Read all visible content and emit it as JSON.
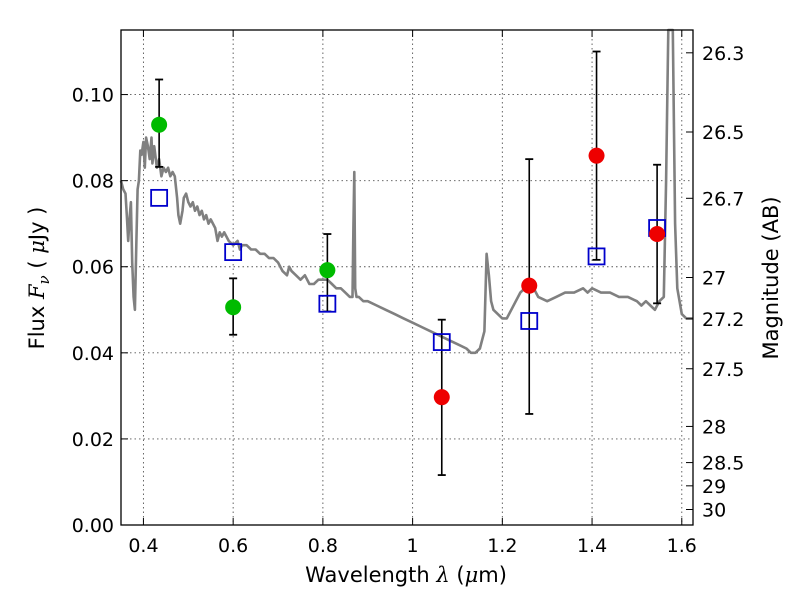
{
  "chart_data": {
    "type": "scatter",
    "xlabel": {
      "prefix": "Wavelength",
      "symbol": "λ",
      "unit_open": "(",
      "unit_mu": "μ",
      "unit_rest": "m)"
    },
    "ylabel": {
      "prefix": "Flux",
      "symbol": "F",
      "subscript": "ν",
      "unit_open": "(",
      "unit_mu": "μ",
      "unit_rest": "Jy",
      "unit_close": ")"
    },
    "y2label": "Magnitude (AB)",
    "xlim": [
      0.35,
      1.625
    ],
    "ylim": [
      0.0,
      0.115
    ],
    "grid": true,
    "x_ticks": [
      0.4,
      0.6,
      0.8,
      1.0,
      1.2,
      1.4,
      1.6
    ],
    "x_tick_labels": [
      "0.4",
      "0.6",
      "0.8",
      "1",
      "1.2",
      "1.4",
      "1.6"
    ],
    "y_ticks": [
      0.0,
      0.02,
      0.04,
      0.06,
      0.08,
      0.1
    ],
    "y_tick_labels": [
      "0.00",
      "0.02",
      "0.04",
      "0.06",
      "0.08",
      "0.10"
    ],
    "mag_ticks": [
      {
        "label": "26.3",
        "y": 0.1097
      },
      {
        "label": "26.5",
        "y": 0.0913
      },
      {
        "label": "26.7",
        "y": 0.0759
      },
      {
        "label": "27",
        "y": 0.0575
      },
      {
        "label": "27.2",
        "y": 0.0479
      },
      {
        "label": "27.5",
        "y": 0.0363
      },
      {
        "label": "28",
        "y": 0.0229
      },
      {
        "label": "28.5",
        "y": 0.0145
      },
      {
        "label": "29",
        "y": 0.0091
      },
      {
        "label": "30",
        "y": 0.0036
      }
    ],
    "series": [
      {
        "marker": "line",
        "color": "#808080",
        "points": [
          [
            0.35,
            0.08
          ],
          [
            0.355,
            0.078
          ],
          [
            0.36,
            0.077
          ],
          [
            0.363,
            0.072
          ],
          [
            0.366,
            0.066
          ],
          [
            0.369,
            0.071
          ],
          [
            0.372,
            0.075
          ],
          [
            0.375,
            0.061
          ],
          [
            0.378,
            0.053
          ],
          [
            0.381,
            0.05
          ],
          [
            0.384,
            0.065
          ],
          [
            0.387,
            0.078
          ],
          [
            0.39,
            0.08
          ],
          [
            0.393,
            0.087
          ],
          [
            0.396,
            0.086
          ],
          [
            0.4,
            0.089
          ],
          [
            0.403,
            0.083
          ],
          [
            0.406,
            0.09
          ],
          [
            0.41,
            0.088
          ],
          [
            0.414,
            0.085
          ],
          [
            0.418,
            0.09
          ],
          [
            0.42,
            0.084
          ],
          [
            0.424,
            0.088
          ],
          [
            0.43,
            0.083
          ],
          [
            0.435,
            0.085
          ],
          [
            0.44,
            0.081
          ],
          [
            0.445,
            0.083
          ],
          [
            0.45,
            0.082
          ],
          [
            0.455,
            0.083
          ],
          [
            0.46,
            0.081
          ],
          [
            0.465,
            0.082
          ],
          [
            0.47,
            0.081
          ],
          [
            0.475,
            0.076
          ],
          [
            0.478,
            0.072
          ],
          [
            0.482,
            0.07
          ],
          [
            0.487,
            0.073
          ],
          [
            0.49,
            0.076
          ],
          [
            0.495,
            0.077
          ],
          [
            0.5,
            0.075
          ],
          [
            0.505,
            0.074
          ],
          [
            0.51,
            0.075
          ],
          [
            0.515,
            0.073
          ],
          [
            0.52,
            0.074
          ],
          [
            0.525,
            0.072
          ],
          [
            0.53,
            0.073
          ],
          [
            0.535,
            0.071
          ],
          [
            0.54,
            0.072
          ],
          [
            0.545,
            0.07
          ],
          [
            0.55,
            0.071
          ],
          [
            0.56,
            0.069
          ],
          [
            0.565,
            0.066
          ],
          [
            0.57,
            0.068
          ],
          [
            0.575,
            0.067
          ],
          [
            0.58,
            0.068
          ],
          [
            0.59,
            0.066
          ],
          [
            0.6,
            0.065
          ],
          [
            0.61,
            0.066
          ],
          [
            0.615,
            0.064
          ],
          [
            0.62,
            0.065
          ],
          [
            0.63,
            0.065
          ],
          [
            0.64,
            0.064
          ],
          [
            0.65,
            0.064
          ],
          [
            0.66,
            0.063
          ],
          [
            0.67,
            0.063
          ],
          [
            0.68,
            0.062
          ],
          [
            0.69,
            0.062
          ],
          [
            0.7,
            0.061
          ],
          [
            0.71,
            0.059
          ],
          [
            0.72,
            0.058
          ],
          [
            0.725,
            0.06
          ],
          [
            0.73,
            0.059
          ],
          [
            0.74,
            0.058
          ],
          [
            0.75,
            0.057
          ],
          [
            0.76,
            0.058
          ],
          [
            0.77,
            0.056
          ],
          [
            0.78,
            0.056
          ],
          [
            0.79,
            0.057
          ],
          [
            0.8,
            0.057
          ],
          [
            0.81,
            0.057
          ],
          [
            0.82,
            0.056
          ],
          [
            0.83,
            0.055
          ],
          [
            0.84,
            0.055
          ],
          [
            0.85,
            0.054
          ],
          [
            0.86,
            0.053
          ],
          [
            0.866,
            0.053
          ],
          [
            0.868,
            0.069
          ],
          [
            0.87,
            0.082
          ],
          [
            0.872,
            0.055
          ],
          [
            0.875,
            0.053
          ],
          [
            0.88,
            0.053
          ],
          [
            0.89,
            0.052
          ],
          [
            0.9,
            0.052
          ],
          [
            0.92,
            0.051
          ],
          [
            0.94,
            0.05
          ],
          [
            0.96,
            0.049
          ],
          [
            0.98,
            0.048
          ],
          [
            1.0,
            0.047
          ],
          [
            1.02,
            0.046
          ],
          [
            1.04,
            0.045
          ],
          [
            1.06,
            0.044
          ],
          [
            1.08,
            0.043
          ],
          [
            1.1,
            0.042
          ],
          [
            1.12,
            0.041
          ],
          [
            1.13,
            0.04
          ],
          [
            1.14,
            0.04
          ],
          [
            1.15,
            0.041
          ],
          [
            1.16,
            0.045
          ],
          [
            1.165,
            0.063
          ],
          [
            1.17,
            0.058
          ],
          [
            1.175,
            0.052
          ],
          [
            1.18,
            0.05
          ],
          [
            1.19,
            0.049
          ],
          [
            1.2,
            0.048
          ],
          [
            1.21,
            0.048
          ],
          [
            1.22,
            0.05
          ],
          [
            1.23,
            0.052
          ],
          [
            1.24,
            0.054
          ],
          [
            1.25,
            0.055
          ],
          [
            1.26,
            0.056
          ],
          [
            1.27,
            0.055
          ],
          [
            1.28,
            0.053
          ],
          [
            1.3,
            0.052
          ],
          [
            1.32,
            0.053
          ],
          [
            1.34,
            0.054
          ],
          [
            1.36,
            0.054
          ],
          [
            1.38,
            0.055
          ],
          [
            1.39,
            0.054
          ],
          [
            1.4,
            0.055
          ],
          [
            1.42,
            0.054
          ],
          [
            1.44,
            0.054
          ],
          [
            1.46,
            0.053
          ],
          [
            1.48,
            0.053
          ],
          [
            1.5,
            0.052
          ],
          [
            1.51,
            0.051
          ],
          [
            1.52,
            0.052
          ],
          [
            1.53,
            0.051
          ],
          [
            1.54,
            0.05
          ],
          [
            1.55,
            0.052
          ],
          [
            1.56,
            0.053
          ],
          [
            1.565,
            0.08
          ],
          [
            1.57,
            0.115
          ],
          [
            1.58,
            0.115
          ],
          [
            1.585,
            0.07
          ],
          [
            1.59,
            0.055
          ],
          [
            1.6,
            0.049
          ],
          [
            1.61,
            0.048
          ],
          [
            1.625,
            0.048
          ]
        ]
      },
      {
        "marker": "open-square",
        "color": "#0000cc",
        "points": [
          {
            "x": 0.435,
            "y": 0.076
          },
          {
            "x": 0.6,
            "y": 0.0634
          },
          {
            "x": 0.81,
            "y": 0.0514
          },
          {
            "x": 1.065,
            "y": 0.0425
          },
          {
            "x": 1.26,
            "y": 0.0474
          },
          {
            "x": 1.41,
            "y": 0.0624
          },
          {
            "x": 1.545,
            "y": 0.069
          }
        ]
      },
      {
        "marker": "filled-circle",
        "color": "#00bb00",
        "points": [
          {
            "x": 0.435,
            "y": 0.093,
            "err_low": 0.0832,
            "err_high": 0.1035
          },
          {
            "x": 0.6,
            "y": 0.0506,
            "err_low": 0.0442,
            "err_high": 0.0573
          },
          {
            "x": 0.81,
            "y": 0.0592,
            "err_low": 0.0496,
            "err_high": 0.0676
          }
        ]
      },
      {
        "marker": "filled-circle",
        "color": "#ee0000",
        "points": [
          {
            "x": 1.065,
            "y": 0.0297,
            "err_low": 0.0116,
            "err_high": 0.0477
          },
          {
            "x": 1.26,
            "y": 0.0556,
            "err_low": 0.0258,
            "err_high": 0.085
          },
          {
            "x": 1.41,
            "y": 0.0858,
            "err_low": 0.0616,
            "err_high": 0.11
          },
          {
            "x": 1.545,
            "y": 0.0676,
            "err_low": 0.0515,
            "err_high": 0.0837
          }
        ]
      }
    ]
  }
}
